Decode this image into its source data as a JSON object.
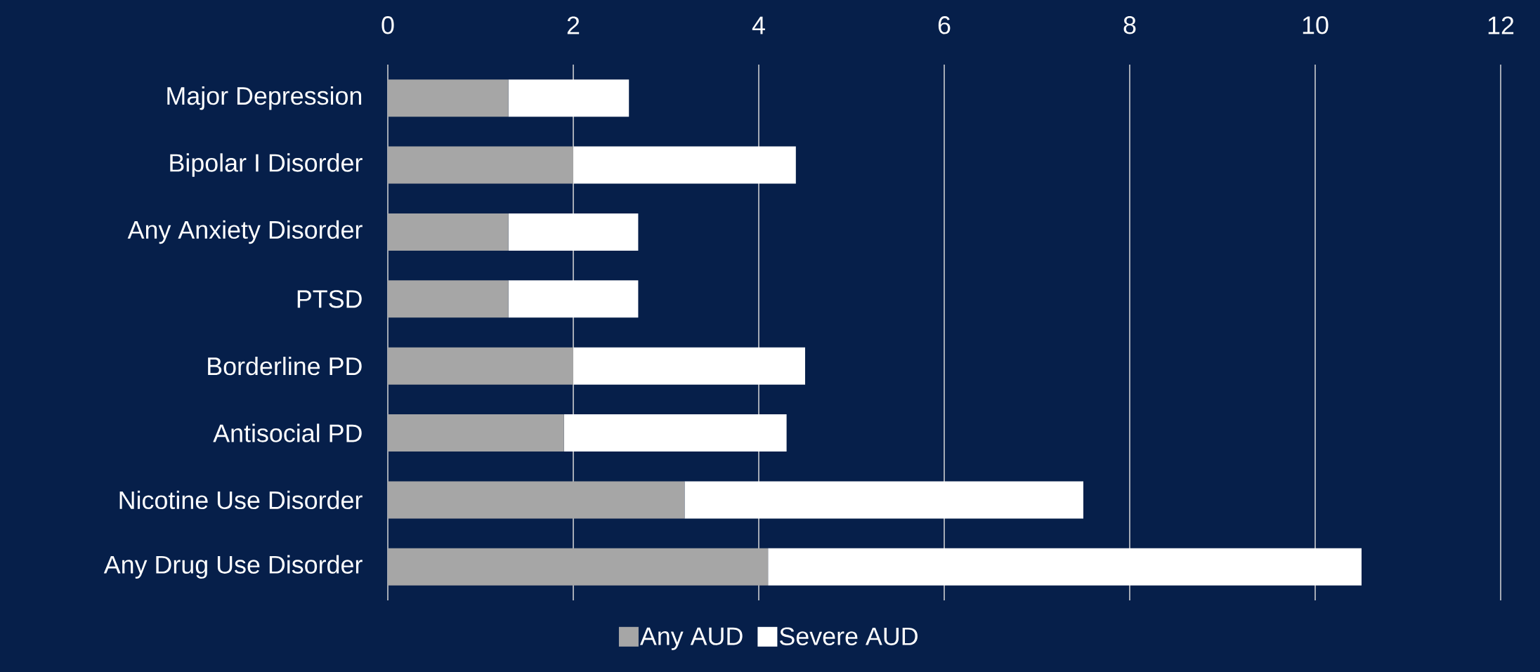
{
  "chart_data": {
    "type": "bar",
    "orientation": "horizontal",
    "stacked": true,
    "categories": [
      "Major Depression",
      "Bipolar I Disorder",
      "Any Anxiety Disorder",
      "PTSD",
      "Borderline PD",
      "Antisocial PD",
      "Nicotine Use Disorder",
      "Any Drug Use Disorder"
    ],
    "series": [
      {
        "name": "Any AUD",
        "color": "#a6a6a6",
        "values": [
          1.3,
          2.0,
          1.3,
          1.3,
          2.0,
          1.9,
          3.2,
          4.1
        ]
      },
      {
        "name": "Severe AUD",
        "color": "#ffffff",
        "values": [
          1.3,
          2.4,
          1.4,
          1.4,
          2.5,
          2.4,
          4.3,
          6.4
        ]
      }
    ],
    "xlim": [
      0,
      12
    ],
    "xticks": [
      0,
      2,
      4,
      6,
      8,
      10,
      12
    ],
    "grid": "x",
    "legend": "bottom"
  }
}
